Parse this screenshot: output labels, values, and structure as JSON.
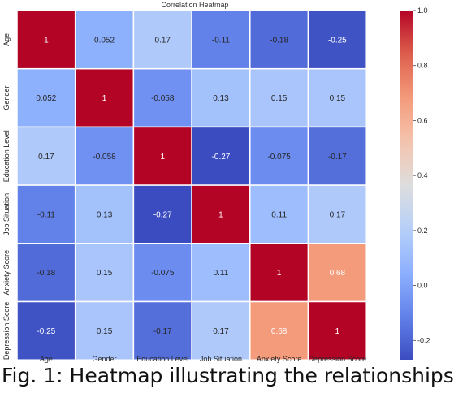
{
  "chart_data": {
    "type": "heatmap",
    "title": "Correlation Heatmap",
    "x_labels": [
      "Age",
      "Gender",
      "Education Level",
      "Job Situation",
      "Anxiety Score",
      "Depression Score"
    ],
    "y_labels": [
      "Age",
      "Gender",
      "Education Level",
      "Job Situation",
      "Anxiety Score",
      "Depression Score"
    ],
    "values": [
      [
        1,
        0.052,
        0.17,
        -0.11,
        -0.18,
        -0.25
      ],
      [
        0.052,
        1,
        -0.058,
        0.13,
        0.15,
        0.15
      ],
      [
        0.17,
        -0.058,
        1,
        -0.27,
        -0.075,
        -0.17
      ],
      [
        -0.11,
        0.13,
        -0.27,
        1,
        0.11,
        0.17
      ],
      [
        -0.18,
        0.15,
        -0.075,
        0.11,
        1,
        0.68
      ],
      [
        -0.25,
        0.15,
        -0.17,
        0.17,
        0.68,
        1
      ]
    ],
    "labels": [
      [
        "1",
        "0.052",
        "0.17",
        "-0.11",
        "-0.18",
        "-0.25"
      ],
      [
        "0.052",
        "1",
        "-0.058",
        "0.13",
        "0.15",
        "0.15"
      ],
      [
        "0.17",
        "-0.058",
        "1",
        "-0.27",
        "-0.075",
        "-0.17"
      ],
      [
        "-0.11",
        "0.13",
        "-0.27",
        "1",
        "0.11",
        "0.17"
      ],
      [
        "-0.18",
        "0.15",
        "-0.075",
        "0.11",
        "1",
        "0.68"
      ],
      [
        "-0.25",
        "0.15",
        "-0.17",
        "0.17",
        "0.68",
        "1"
      ]
    ],
    "colormap": "coolwarm",
    "vmin": -0.27,
    "vmax": 1.0,
    "colorbar_ticks": [
      1.0,
      0.8,
      0.6,
      0.4,
      0.2,
      0.0,
      -0.2
    ],
    "colorbar_tick_labels": [
      "1.0",
      "0.8",
      "0.6",
      "0.4",
      "0.2",
      "0.0",
      "-0.2"
    ]
  },
  "caption": "Fig. 1: Heatmap illustrating the relationships"
}
